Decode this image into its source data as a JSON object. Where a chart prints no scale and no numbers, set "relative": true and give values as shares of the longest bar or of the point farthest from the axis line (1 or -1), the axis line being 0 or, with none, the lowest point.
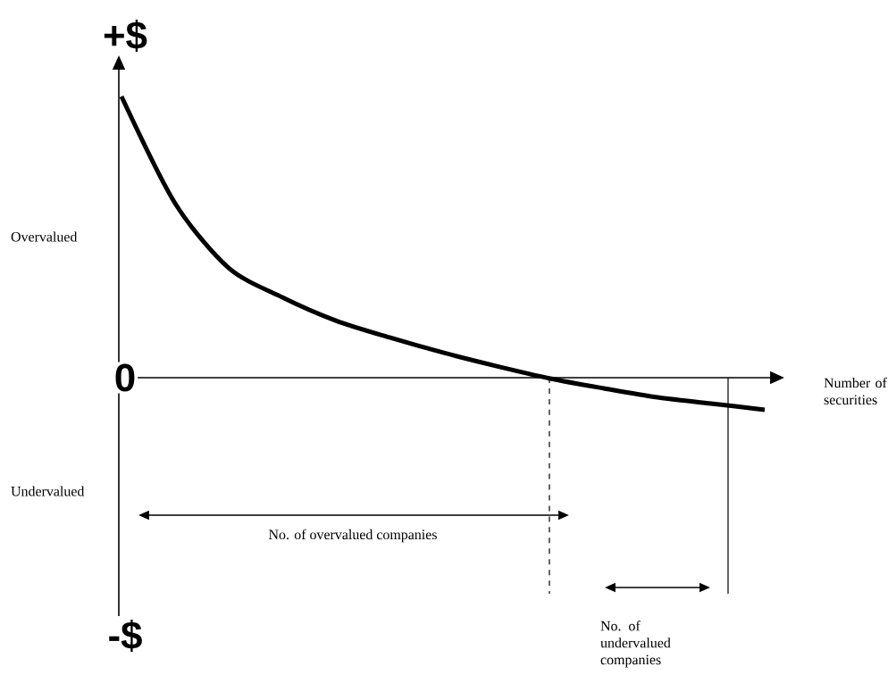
{
  "chart_data": {
    "type": "line",
    "relative": true,
    "xlabel": "Number of securities",
    "categories": [
      null,
      null,
      null,
      null,
      null,
      null,
      null,
      null,
      null,
      null,
      null,
      null,
      null
    ],
    "values": [
      1.0,
      0.62,
      0.39,
      0.286,
      0.203,
      0.143,
      0.089,
      0.041,
      -0.003,
      -0.038,
      -0.07,
      -0.092,
      -0.114
    ],
    "color": "#000000",
    "annotations": [
      "+$",
      "0",
      "-$",
      "Overvalued",
      "Undervalued",
      "No. of overvalued companies",
      "No. of undervalued companies"
    ]
  }
}
